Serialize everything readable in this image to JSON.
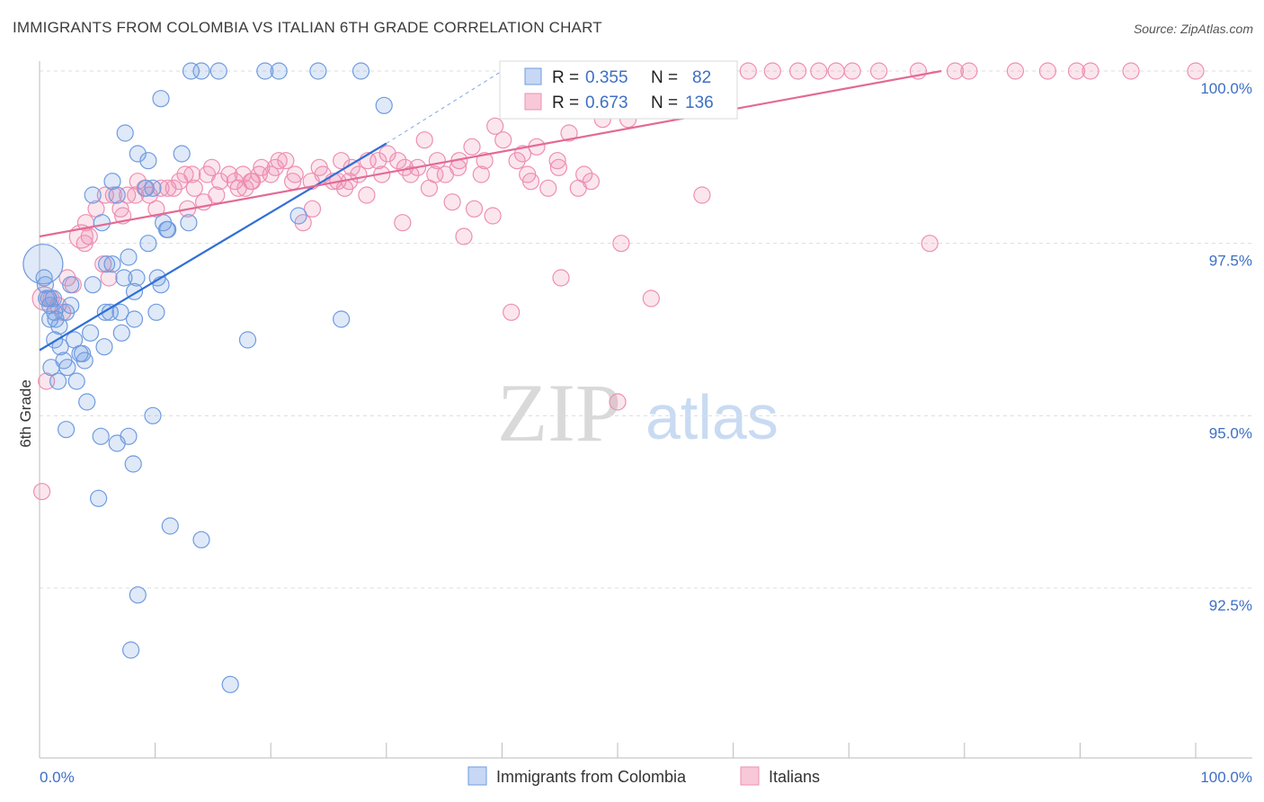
{
  "header": {
    "title": "IMMIGRANTS FROM COLOMBIA VS ITALIAN 6TH GRADE CORRELATION CHART",
    "source": "Source: ZipAtlas.com"
  },
  "watermark": {
    "zip": "ZIP",
    "atlas": "atlas"
  },
  "legend_box": {
    "rows": [
      {
        "r_label": "R =",
        "r_value": "0.355",
        "n_label": "N =",
        "n_value": "82",
        "color": "#6f9be0"
      },
      {
        "r_label": "R =",
        "r_value": "0.673",
        "n_label": "N =",
        "n_value": "136",
        "color": "#ee8fb0"
      }
    ]
  },
  "bottom_legend": [
    {
      "label": "Immigrants from Colombia",
      "color": "#6f9be0"
    },
    {
      "label": "Italians",
      "color": "#ee8fb0"
    }
  ],
  "chart_data": {
    "type": "scatter",
    "title": "IMMIGRANTS FROM COLOMBIA VS ITALIAN 6TH GRADE CORRELATION CHART",
    "xlabel": "",
    "ylabel": "6th Grade",
    "xlim": [
      0,
      100
    ],
    "ylim": [
      90.2,
      100.2
    ],
    "x_tick_labels": [
      "0.0%",
      "100.0%"
    ],
    "y_ticks": [
      {
        "value": 100.0,
        "label": "100.0%"
      },
      {
        "value": 97.5,
        "label": "97.5%"
      },
      {
        "value": 95.0,
        "label": "95.0%"
      },
      {
        "value": 92.5,
        "label": "92.5%"
      }
    ],
    "grid": true,
    "legend_position": "bottom",
    "series": [
      {
        "name": "Immigrants from Colombia",
        "color": "#6f9be0",
        "trendline": {
          "x": [
            0,
            30
          ],
          "y": [
            95.95,
            98.95
          ],
          "dashed_to": [
            40,
            100.0
          ]
        },
        "points": [
          [
            0.3,
            97.2
          ],
          [
            0.5,
            96.9
          ],
          [
            0.6,
            96.7
          ],
          [
            0.8,
            96.7
          ],
          [
            0.9,
            96.6
          ],
          [
            1.3,
            96.5
          ],
          [
            1.4,
            96.4
          ],
          [
            1.7,
            96.3
          ],
          [
            2.3,
            96.5
          ],
          [
            3.0,
            96.1
          ],
          [
            3.5,
            95.9
          ],
          [
            3.7,
            95.9
          ],
          [
            3.9,
            95.8
          ],
          [
            1.0,
            95.7
          ],
          [
            2.4,
            95.7
          ],
          [
            1.6,
            95.5
          ],
          [
            3.2,
            95.5
          ],
          [
            4.1,
            95.2
          ],
          [
            2.3,
            94.8
          ],
          [
            5.3,
            94.7
          ],
          [
            7.7,
            94.7
          ],
          [
            6.7,
            94.6
          ],
          [
            8.1,
            94.3
          ],
          [
            5.1,
            93.8
          ],
          [
            11.3,
            93.4
          ],
          [
            14.0,
            93.2
          ],
          [
            8.5,
            92.4
          ],
          [
            7.9,
            91.6
          ],
          [
            16.5,
            91.1
          ],
          [
            2.7,
            96.9
          ],
          [
            4.6,
            96.9
          ],
          [
            6.1,
            96.5
          ],
          [
            5.7,
            96.5
          ],
          [
            7.0,
            96.5
          ],
          [
            8.2,
            96.4
          ],
          [
            10.1,
            96.5
          ],
          [
            7.1,
            96.2
          ],
          [
            5.6,
            96.0
          ],
          [
            8.2,
            96.8
          ],
          [
            7.3,
            97.0
          ],
          [
            10.2,
            97.0
          ],
          [
            10.5,
            96.9
          ],
          [
            6.3,
            97.2
          ],
          [
            5.8,
            97.2
          ],
          [
            7.7,
            97.3
          ],
          [
            9.4,
            97.5
          ],
          [
            11.0,
            97.7
          ],
          [
            12.9,
            97.8
          ],
          [
            5.4,
            97.8
          ],
          [
            6.7,
            98.2
          ],
          [
            4.6,
            98.2
          ],
          [
            6.3,
            98.4
          ],
          [
            9.2,
            98.3
          ],
          [
            9.4,
            98.7
          ],
          [
            8.5,
            98.8
          ],
          [
            12.3,
            98.8
          ],
          [
            7.4,
            99.1
          ],
          [
            10.5,
            99.6
          ],
          [
            13.1,
            100.0
          ],
          [
            14.0,
            100.0
          ],
          [
            15.5,
            100.0
          ],
          [
            19.5,
            100.0
          ],
          [
            20.7,
            100.0
          ],
          [
            24.1,
            100.0
          ],
          [
            27.8,
            100.0
          ],
          [
            29.8,
            99.5
          ],
          [
            26.1,
            96.4
          ],
          [
            18.0,
            96.1
          ],
          [
            22.4,
            97.9
          ],
          [
            9.8,
            95.0
          ],
          [
            9.8,
            98.3
          ],
          [
            1.3,
            96.1
          ],
          [
            0.9,
            96.4
          ],
          [
            1.8,
            96.0
          ],
          [
            2.1,
            95.8
          ],
          [
            2.7,
            96.6
          ],
          [
            4.4,
            96.2
          ],
          [
            0.4,
            97.0
          ],
          [
            1.2,
            96.7
          ],
          [
            10.7,
            97.8
          ],
          [
            11.1,
            97.7
          ],
          [
            8.4,
            97.0
          ]
        ]
      },
      {
        "name": "Italians",
        "color": "#ee8fb0",
        "trendline": {
          "x": [
            0,
            78
          ],
          "y": [
            97.6,
            100.0
          ]
        },
        "points": [
          [
            0.4,
            96.7
          ],
          [
            1.6,
            96.6
          ],
          [
            2.4,
            97.0
          ],
          [
            3.6,
            97.6
          ],
          [
            4.0,
            97.8
          ],
          [
            4.9,
            98.0
          ],
          [
            5.7,
            98.2
          ],
          [
            6.4,
            98.2
          ],
          [
            7.0,
            98.0
          ],
          [
            7.6,
            98.2
          ],
          [
            8.5,
            98.4
          ],
          [
            8.3,
            98.2
          ],
          [
            9.5,
            98.2
          ],
          [
            10.1,
            98.0
          ],
          [
            11.1,
            98.3
          ],
          [
            12.1,
            98.4
          ],
          [
            12.6,
            98.5
          ],
          [
            13.4,
            98.3
          ],
          [
            14.2,
            98.1
          ],
          [
            14.9,
            98.6
          ],
          [
            15.3,
            98.2
          ],
          [
            16.4,
            98.5
          ],
          [
            17.2,
            98.3
          ],
          [
            17.6,
            98.5
          ],
          [
            18.4,
            98.4
          ],
          [
            19.2,
            98.6
          ],
          [
            20.0,
            98.5
          ],
          [
            20.7,
            98.7
          ],
          [
            21.3,
            98.7
          ],
          [
            22.1,
            98.5
          ],
          [
            23.5,
            98.4
          ],
          [
            24.2,
            98.6
          ],
          [
            25.4,
            98.4
          ],
          [
            26.1,
            98.7
          ],
          [
            26.8,
            98.4
          ],
          [
            27.6,
            98.5
          ],
          [
            28.4,
            98.7
          ],
          [
            29.3,
            98.7
          ],
          [
            30.1,
            98.8
          ],
          [
            31.0,
            98.7
          ],
          [
            32.1,
            98.5
          ],
          [
            33.3,
            99.0
          ],
          [
            34.4,
            98.7
          ],
          [
            35.1,
            98.5
          ],
          [
            36.3,
            98.7
          ],
          [
            37.4,
            98.9
          ],
          [
            38.5,
            98.7
          ],
          [
            39.4,
            99.2
          ],
          [
            40.1,
            99.0
          ],
          [
            41.3,
            98.7
          ],
          [
            42.2,
            98.5
          ],
          [
            43.0,
            98.9
          ],
          [
            44.8,
            98.7
          ],
          [
            45.8,
            99.1
          ],
          [
            46.6,
            98.3
          ],
          [
            47.1,
            98.5
          ],
          [
            48.7,
            99.3
          ],
          [
            50.9,
            99.3
          ],
          [
            52.7,
            99.5
          ],
          [
            55.8,
            99.6
          ],
          [
            57.6,
            100.0
          ],
          [
            59.5,
            100.0
          ],
          [
            61.3,
            100.0
          ],
          [
            63.4,
            100.0
          ],
          [
            65.6,
            100.0
          ],
          [
            67.4,
            100.0
          ],
          [
            68.9,
            100.0
          ],
          [
            70.3,
            100.0
          ],
          [
            72.6,
            100.0
          ],
          [
            76.0,
            100.0
          ],
          [
            79.2,
            100.0
          ],
          [
            80.4,
            100.0
          ],
          [
            84.4,
            100.0
          ],
          [
            87.2,
            100.0
          ],
          [
            89.7,
            100.0
          ],
          [
            90.9,
            100.0
          ],
          [
            94.4,
            100.0
          ],
          [
            100.0,
            100.0
          ],
          [
            43.8,
            100.0
          ],
          [
            46.1,
            100.0
          ],
          [
            50.2,
            100.0
          ],
          [
            54.2,
            100.0
          ],
          [
            57.3,
            98.2
          ],
          [
            77.0,
            97.5
          ],
          [
            50.3,
            97.5
          ],
          [
            45.1,
            97.0
          ],
          [
            52.9,
            96.7
          ],
          [
            40.8,
            96.5
          ],
          [
            50.0,
            95.2
          ],
          [
            0.2,
            93.9
          ],
          [
            0.6,
            95.5
          ],
          [
            12.8,
            98.0
          ],
          [
            16.9,
            98.4
          ],
          [
            18.3,
            98.4
          ],
          [
            23.6,
            98.0
          ],
          [
            22.8,
            97.8
          ],
          [
            28.3,
            98.2
          ],
          [
            31.4,
            97.8
          ],
          [
            33.7,
            98.3
          ],
          [
            35.7,
            98.1
          ],
          [
            37.6,
            98.0
          ],
          [
            36.7,
            97.6
          ],
          [
            39.2,
            97.9
          ],
          [
            44.0,
            98.3
          ],
          [
            47.7,
            98.4
          ],
          [
            24.5,
            98.5
          ],
          [
            25.8,
            98.4
          ],
          [
            27.0,
            98.6
          ],
          [
            29.6,
            98.5
          ],
          [
            31.6,
            98.6
          ],
          [
            34.2,
            98.5
          ],
          [
            36.2,
            98.6
          ],
          [
            38.2,
            98.5
          ],
          [
            41.8,
            98.8
          ],
          [
            42.5,
            98.4
          ],
          [
            44.9,
            98.6
          ],
          [
            19.0,
            98.5
          ],
          [
            15.6,
            98.4
          ],
          [
            13.2,
            98.5
          ],
          [
            11.6,
            98.3
          ],
          [
            10.5,
            98.3
          ],
          [
            9.1,
            98.3
          ],
          [
            7.2,
            97.9
          ],
          [
            6.0,
            97.0
          ],
          [
            4.3,
            97.6
          ],
          [
            2.0,
            96.5
          ],
          [
            1.0,
            96.7
          ],
          [
            2.9,
            96.9
          ],
          [
            5.5,
            97.2
          ],
          [
            3.9,
            97.5
          ],
          [
            14.5,
            98.5
          ],
          [
            17.8,
            98.3
          ],
          [
            20.4,
            98.6
          ],
          [
            21.9,
            98.4
          ],
          [
            26.4,
            98.3
          ],
          [
            32.7,
            98.6
          ]
        ]
      }
    ]
  }
}
